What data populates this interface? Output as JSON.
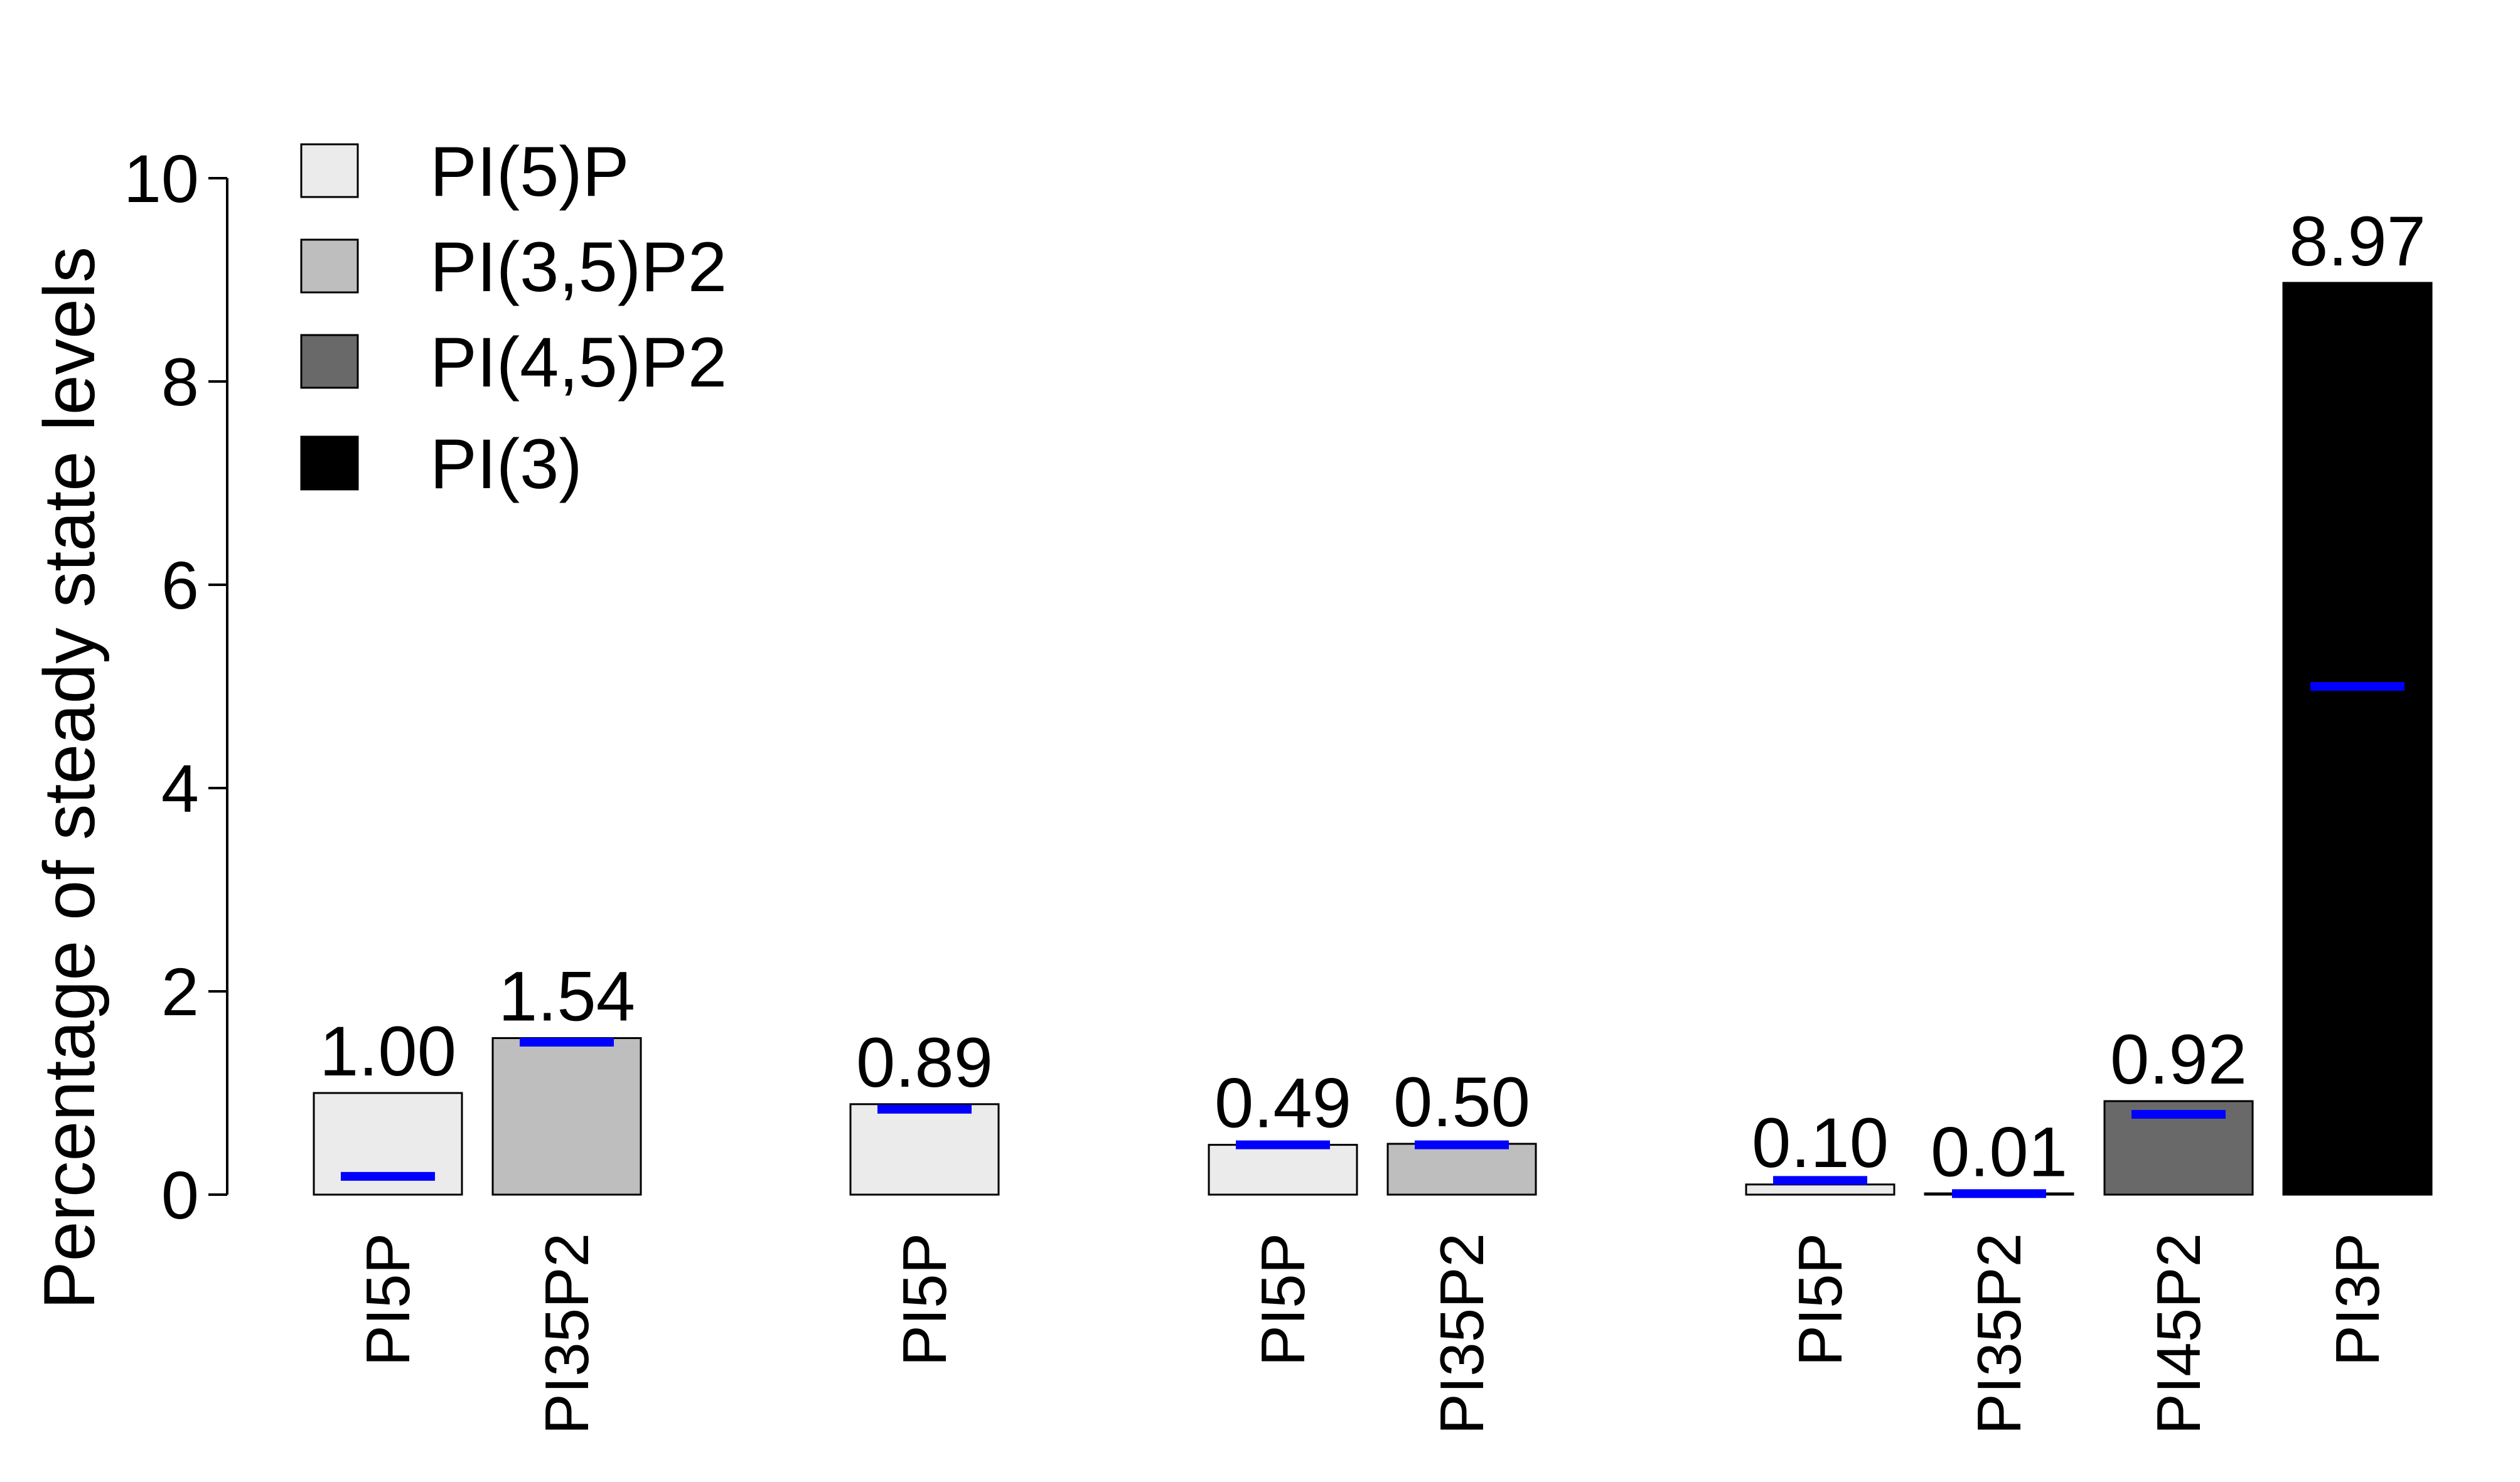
{
  "chart_data": {
    "type": "bar",
    "title": "",
    "xlabel": "",
    "ylabel": "Percentage of steady state levels",
    "ylim": [
      0,
      10
    ],
    "yticks": [
      "0",
      "2",
      "4",
      "6",
      "8",
      "10"
    ],
    "grid": false,
    "legend": {
      "position": "top-left",
      "entries": [
        {
          "label": "PI(5)P",
          "color": "#ebebeb"
        },
        {
          "label": "PI(3,5)P2",
          "color": "#bebebe"
        },
        {
          "label": "PI(4,5)P2",
          "color": "#696969"
        },
        {
          "label": "PI(3)",
          "color": "#000000"
        }
      ]
    },
    "bars": [
      {
        "label": "PI5P",
        "value": 1.0,
        "value_label": "1.00",
        "marker": 0.18,
        "color": "#ebebeb",
        "group": 1
      },
      {
        "label": "PI35P2",
        "value": 1.54,
        "value_label": "1.54",
        "marker": 1.5,
        "color": "#bebebe",
        "group": 1
      },
      {
        "label": "PI5P",
        "value": 0.89,
        "value_label": "0.89",
        "marker": 0.84,
        "color": "#ebebeb",
        "group": 2
      },
      {
        "label": "PI5P",
        "value": 0.49,
        "value_label": "0.49",
        "marker": 0.49,
        "color": "#ebebeb",
        "group": 3
      },
      {
        "label": "PI35P2",
        "value": 0.5,
        "value_label": "0.50",
        "marker": 0.49,
        "color": "#bebebe",
        "group": 3
      },
      {
        "label": "PI5P",
        "value": 0.1,
        "value_label": "0.10",
        "marker": 0.14,
        "color": "#ebebeb",
        "group": 4
      },
      {
        "label": "PI35P2",
        "value": 0.01,
        "value_label": "0.01",
        "marker": 0.01,
        "color": "#bebebe",
        "group": 4
      },
      {
        "label": "PI45P2",
        "value": 0.92,
        "value_label": "0.92",
        "marker": 0.79,
        "color": "#696969",
        "group": 4
      },
      {
        "label": "PI3P",
        "value": 8.97,
        "value_label": "8.97",
        "marker": 5.0,
        "color": "#000000",
        "group": 4
      }
    ],
    "marker_color": "#0000ff"
  }
}
